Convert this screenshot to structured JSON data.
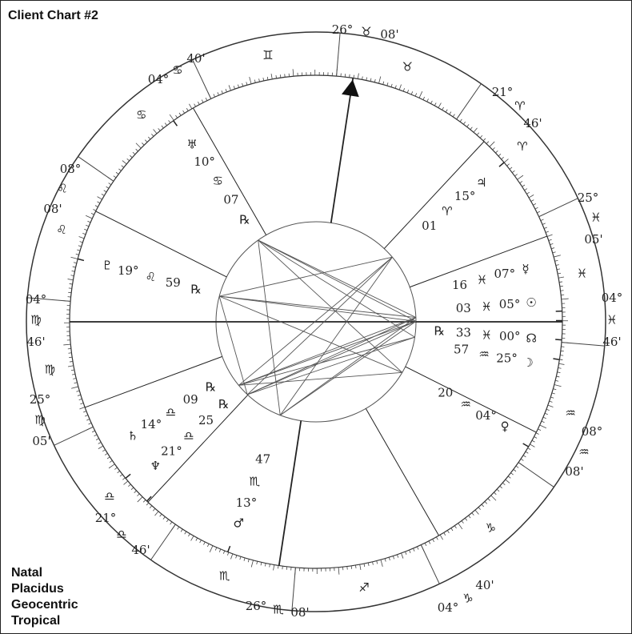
{
  "title": "Client Chart #2",
  "chart_settings": [
    "Natal",
    "Placidus",
    "Geocentric",
    "Tropical"
  ],
  "zodiac": [
    "♈",
    "♉",
    "♊",
    "♋",
    "♌",
    "♍",
    "♎",
    "♏",
    "♐",
    "♑",
    "♒",
    "♓"
  ],
  "cusps": [
    {
      "deg": "04°",
      "sign": "♍",
      "min": "46'"
    },
    {
      "deg": "25°",
      "sign": "♍",
      "min": "05'"
    },
    {
      "deg": "21°",
      "sign": "♎",
      "min": "46'",
      "color": "#888888"
    },
    {
      "deg": "26°",
      "sign": "♏",
      "min": "08'"
    },
    {
      "deg": "04°",
      "sign": "♑",
      "min": "40'"
    },
    {
      "deg": "08°",
      "sign": "♒",
      "min": "08'",
      "color": "#888888"
    },
    {
      "deg": "04°",
      "sign": "♓",
      "min": "46'"
    },
    {
      "deg": "25°",
      "sign": "♓",
      "min": "05'"
    },
    {
      "deg": "21°",
      "sign": "♈",
      "min": "46'"
    },
    {
      "deg": "26°",
      "sign": "♉",
      "min": "08'"
    },
    {
      "deg": "04°",
      "sign": "♋",
      "min": "40'"
    },
    {
      "deg": "08°",
      "sign": "♌",
      "min": "08'"
    }
  ],
  "planets": [
    {
      "glyph": "♅",
      "deg": "10°",
      "sign": "♋",
      "min": "07",
      "retro": "℞"
    },
    {
      "glyph": "♃",
      "deg": "15°",
      "sign": "♈",
      "min": "01"
    },
    {
      "glyph": "♇",
      "deg": "19°",
      "sign": "♌",
      "min": "59",
      "retro": "℞"
    },
    {
      "glyph": "☿",
      "deg": "07°",
      "sign": "♓",
      "min": "16"
    },
    {
      "glyph": "☉",
      "deg": "05°",
      "sign": "♓",
      "min": "03"
    },
    {
      "glyph": "☊",
      "deg": "00°",
      "sign": "♓",
      "min": "33",
      "retro": "℞"
    },
    {
      "glyph": "☽",
      "deg": "25°",
      "sign": "♒",
      "min": "57"
    },
    {
      "glyph": "♀",
      "deg": "04°",
      "sign": "♒",
      "min": "20"
    },
    {
      "glyph": "♂",
      "deg": "13°",
      "sign": "♏",
      "min": "47"
    },
    {
      "glyph": "♆",
      "deg": "21°",
      "sign": "♎",
      "min": "25",
      "retro": "℞"
    },
    {
      "glyph": "♄",
      "deg": "14°",
      "sign": "♎",
      "min": "09",
      "retro": "℞",
      "color": "#888888"
    }
  ]
}
